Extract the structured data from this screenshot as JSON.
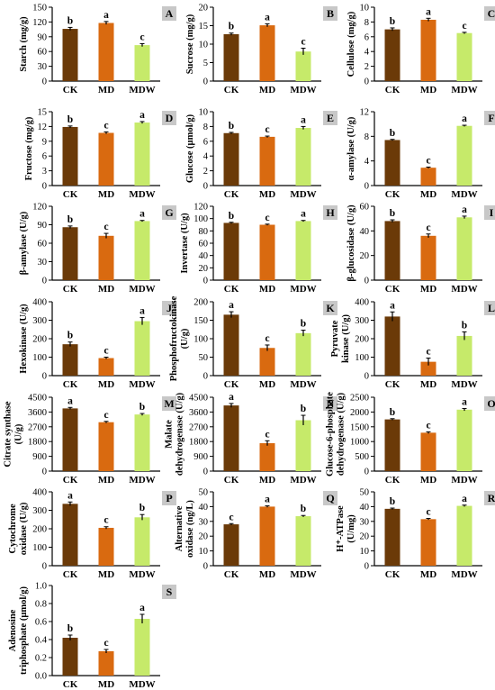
{
  "figure": {
    "colors": {
      "CK": "#6b3a08",
      "MD": "#d96a10",
      "MDW": "#c6ea6a",
      "label_bg": "#c8c8c8"
    },
    "categories": [
      "CK",
      "MD",
      "MDW"
    ]
  },
  "chart_data": [
    {
      "panel": "A",
      "type": "bar",
      "ylabel": [
        "Starch (mg/g)"
      ],
      "ylim": [
        0,
        150
      ],
      "yticks": [
        0,
        30,
        60,
        90,
        120,
        150
      ],
      "values": [
        106,
        118,
        73
      ],
      "errors": [
        3,
        3,
        3
      ],
      "letters": [
        "b",
        "a",
        "c"
      ]
    },
    {
      "panel": "B",
      "type": "bar",
      "ylabel": [
        "Sucrose (mg/g)"
      ],
      "ylim": [
        0,
        20
      ],
      "yticks": [
        0,
        5,
        10,
        15,
        20
      ],
      "values": [
        12.7,
        15.1,
        8.0
      ],
      "errors": [
        0.3,
        0.4,
        0.9
      ],
      "letters": [
        "b",
        "a",
        "c"
      ]
    },
    {
      "panel": "C",
      "type": "bar",
      "ylabel": [
        "Cellulose (mg/g)"
      ],
      "ylim": [
        0,
        10
      ],
      "yticks": [
        0,
        2,
        4,
        6,
        8,
        10
      ],
      "values": [
        7.0,
        8.3,
        6.5
      ],
      "errors": [
        0.2,
        0.2,
        0.1
      ],
      "letters": [
        "b",
        "a",
        "c"
      ]
    },
    {
      "panel": "D",
      "type": "bar",
      "ylabel": [
        "Fructose (mg/g)"
      ],
      "ylim": [
        0,
        15
      ],
      "yticks": [
        0,
        3,
        6,
        9,
        12,
        15
      ],
      "values": [
        11.9,
        10.7,
        12.8
      ],
      "errors": [
        0.2,
        0.2,
        0.2
      ],
      "letters": [
        "b",
        "c",
        "a"
      ]
    },
    {
      "panel": "E",
      "type": "bar",
      "ylabel": [
        "Glucose (µmol/g)"
      ],
      "ylim": [
        0,
        10
      ],
      "yticks": [
        0,
        2,
        4,
        6,
        8,
        10
      ],
      "values": [
        7.1,
        6.6,
        7.8
      ],
      "errors": [
        0.1,
        0.1,
        0.2
      ],
      "letters": [
        "b",
        "c",
        "a"
      ]
    },
    {
      "panel": "F",
      "type": "bar",
      "ylabel": [
        "α-amylase (U/g)"
      ],
      "ylim": [
        0,
        12
      ],
      "yticks": [
        0,
        4,
        8,
        12
      ],
      "values": [
        7.4,
        2.9,
        9.7
      ],
      "errors": [
        0.1,
        0.1,
        0.1
      ],
      "letters": [
        "b",
        "c",
        "a"
      ]
    },
    {
      "panel": "G",
      "type": "bar",
      "ylabel": [
        "β-amylase (U/g)"
      ],
      "ylim": [
        0,
        120
      ],
      "yticks": [
        0,
        30,
        60,
        90,
        120
      ],
      "values": [
        86,
        72,
        96
      ],
      "errors": [
        2,
        4,
        1
      ],
      "letters": [
        "b",
        "c",
        "a"
      ]
    },
    {
      "panel": "H",
      "type": "bar",
      "ylabel": [
        "Invertase (U/g)"
      ],
      "ylim": [
        0,
        120
      ],
      "yticks": [
        0,
        20,
        40,
        60,
        80,
        100,
        120
      ],
      "values": [
        93,
        90,
        96
      ],
      "errors": [
        1,
        1,
        1
      ],
      "letters": [
        "b",
        "c",
        "a"
      ]
    },
    {
      "panel": "I",
      "type": "bar",
      "ylabel": [
        "β-glucosidase (U/g)"
      ],
      "ylim": [
        0,
        60
      ],
      "yticks": [
        0,
        20,
        40,
        60
      ],
      "values": [
        48,
        36,
        51
      ],
      "errors": [
        1,
        1.5,
        1
      ],
      "letters": [
        "b",
        "c",
        "a"
      ]
    },
    {
      "panel": "J",
      "type": "bar",
      "ylabel": [
        "Hexokinase (U/g)"
      ],
      "ylim": [
        0,
        400
      ],
      "yticks": [
        0,
        100,
        200,
        300,
        400
      ],
      "values": [
        170,
        95,
        295
      ],
      "errors": [
        12,
        5,
        20
      ],
      "letters": [
        "b",
        "c",
        "a"
      ]
    },
    {
      "panel": "K",
      "type": "bar",
      "ylabel": [
        "Phosphofructokinase",
        "(U/g)"
      ],
      "ylim": [
        0,
        200
      ],
      "yticks": [
        0,
        50,
        100,
        150,
        200
      ],
      "values": [
        165,
        75,
        115
      ],
      "errors": [
        8,
        8,
        8
      ],
      "letters": [
        "a",
        "c",
        "b"
      ]
    },
    {
      "panel": "L",
      "type": "bar",
      "ylabel": [
        "Pyruvate",
        "kinase (U/g)"
      ],
      "ylim": [
        0,
        400
      ],
      "yticks": [
        0,
        100,
        200,
        300,
        400
      ],
      "values": [
        320,
        75,
        215
      ],
      "errors": [
        25,
        20,
        22
      ],
      "letters": [
        "a",
        "c",
        "b"
      ]
    },
    {
      "panel": "M",
      "type": "bar",
      "ylabel": [
        "Citrate synthase",
        "(U/g)"
      ],
      "ylim": [
        0,
        4500
      ],
      "yticks": [
        0,
        900,
        1800,
        2700,
        3600,
        4500
      ],
      "values": [
        3820,
        2980,
        3450
      ],
      "errors": [
        60,
        50,
        60
      ],
      "letters": [
        "a",
        "c",
        "b"
      ]
    },
    {
      "panel": "N",
      "type": "bar",
      "ylabel": [
        "Malate",
        "dehydrogenase (U/g)"
      ],
      "ylim": [
        0,
        4500
      ],
      "yticks": [
        0,
        900,
        1800,
        2700,
        3600,
        4500
      ],
      "values": [
        4000,
        1700,
        3100
      ],
      "errors": [
        120,
        150,
        300
      ],
      "letters": [
        "a",
        "c",
        "b"
      ]
    },
    {
      "panel": "O",
      "type": "bar",
      "ylabel": [
        "Glucose-6-phosphate",
        "dehydrogenase (U/g)"
      ],
      "ylim": [
        0,
        2500
      ],
      "yticks": [
        0,
        500,
        1000,
        1500,
        2000,
        2500
      ],
      "values": [
        1750,
        1300,
        2080
      ],
      "errors": [
        25,
        30,
        40
      ],
      "letters": [
        "b",
        "c",
        "a"
      ]
    },
    {
      "panel": "P",
      "type": "bar",
      "ylabel": [
        "Cytochrome",
        "oxidase (U/g)"
      ],
      "ylim": [
        0,
        400
      ],
      "yticks": [
        0,
        100,
        200,
        300,
        400
      ],
      "values": [
        335,
        205,
        262
      ],
      "errors": [
        10,
        6,
        15
      ],
      "letters": [
        "a",
        "c",
        "b"
      ]
    },
    {
      "panel": "Q",
      "type": "bar",
      "ylabel": [
        "Alternative",
        "oxidase (ng/L)"
      ],
      "ylim": [
        0,
        50
      ],
      "yticks": [
        0,
        10,
        20,
        30,
        40,
        50
      ],
      "values": [
        28,
        40,
        33.5
      ],
      "errors": [
        0.5,
        0.5,
        0.5
      ],
      "letters": [
        "c",
        "a",
        "b"
      ]
    },
    {
      "panel": "R",
      "type": "bar",
      "ylabel": [
        "H⁺-ATPase",
        "(U/mg)"
      ],
      "ylim": [
        0,
        50
      ],
      "yticks": [
        0,
        10,
        20,
        30,
        40,
        50
      ],
      "values": [
        38.5,
        31.5,
        40.5
      ],
      "errors": [
        0.5,
        0.5,
        0.5
      ],
      "letters": [
        "b",
        "c",
        "a"
      ]
    },
    {
      "panel": "S",
      "type": "bar",
      "ylabel": [
        "Adenosine",
        "triphosphate (µmol/g)"
      ],
      "ylim": [
        0,
        1.0
      ],
      "yticks": [
        "0.0",
        "0.2",
        "0.4",
        "0.6",
        "0.8",
        "1.0"
      ],
      "values": [
        0.42,
        0.27,
        0.63
      ],
      "errors": [
        0.03,
        0.02,
        0.05
      ],
      "letters": [
        "b",
        "c",
        "a"
      ]
    }
  ]
}
